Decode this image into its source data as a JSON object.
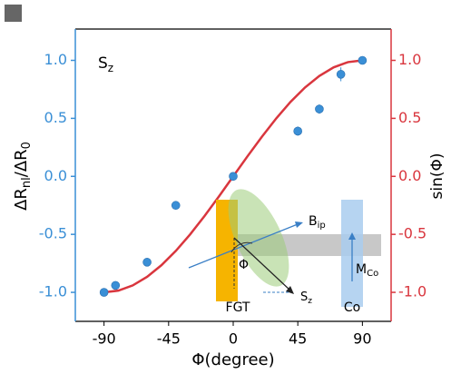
{
  "chart_data": {
    "type": "scatter",
    "xlabel": "Φ(degree)",
    "ylabel": [
      "ΔR",
      "nl",
      "/ΔR",
      "0"
    ],
    "y2label": "sin(Φ)",
    "annotation": [
      "S",
      "z"
    ],
    "xlim": [
      -110,
      110
    ],
    "ylim": [
      -1.25,
      1.27
    ],
    "y2lim": [
      -1.25,
      1.27
    ],
    "xticks": [
      -90,
      -45,
      0,
      45,
      90
    ],
    "yticks": [
      {
        "value": -1,
        "label": "-1.0"
      },
      {
        "value": -0.5,
        "label": "-0.5"
      },
      {
        "value": 0,
        "label": "0.0"
      },
      {
        "value": 0.5,
        "label": "0.5"
      },
      {
        "value": 1,
        "label": "1.0"
      }
    ],
    "y2ticks": [
      {
        "value": -1,
        "label": "-1.0"
      },
      {
        "value": -0.5,
        "label": "-0.5"
      },
      {
        "value": 0,
        "label": "0.0"
      },
      {
        "value": 0.5,
        "label": "0.5"
      },
      {
        "value": 1,
        "label": "1.0"
      }
    ],
    "left_axis_color": "#3a8fd6",
    "right_axis_color": "#d9363e",
    "series": [
      {
        "color": "#3a8fd6",
        "x": [
          -90,
          -82,
          -60,
          -40,
          0,
          45,
          60,
          75,
          90
        ],
        "values": [
          -1.0,
          -0.94,
          -0.74,
          -0.25,
          0.0,
          0.39,
          0.58,
          0.88,
          1.0
        ],
        "errors": [
          0.03,
          0.02,
          0.03,
          0.02,
          0.02,
          0.04,
          0.04,
          0.06,
          0.03
        ]
      },
      {
        "type": "line",
        "axis": "y2",
        "color": "#d9363e",
        "x": [
          -90,
          -80,
          -70,
          -60,
          -50,
          -40,
          -30,
          -20,
          -10,
          0,
          10,
          20,
          30,
          40,
          50,
          60,
          70,
          80,
          90
        ],
        "values": [
          -1,
          -0.985,
          -0.94,
          -0.866,
          -0.766,
          -0.643,
          -0.5,
          -0.342,
          -0.174,
          0,
          0.174,
          0.342,
          0.5,
          0.643,
          0.766,
          0.866,
          0.94,
          0.985,
          1
        ]
      }
    ],
    "inset": {
      "b_field": [
        "B",
        "ip"
      ],
      "angle": "Φ",
      "fgt": "FGT",
      "spin": [
        "S",
        "z"
      ],
      "moment": [
        "M",
        "Co"
      ],
      "co": "Co"
    }
  }
}
